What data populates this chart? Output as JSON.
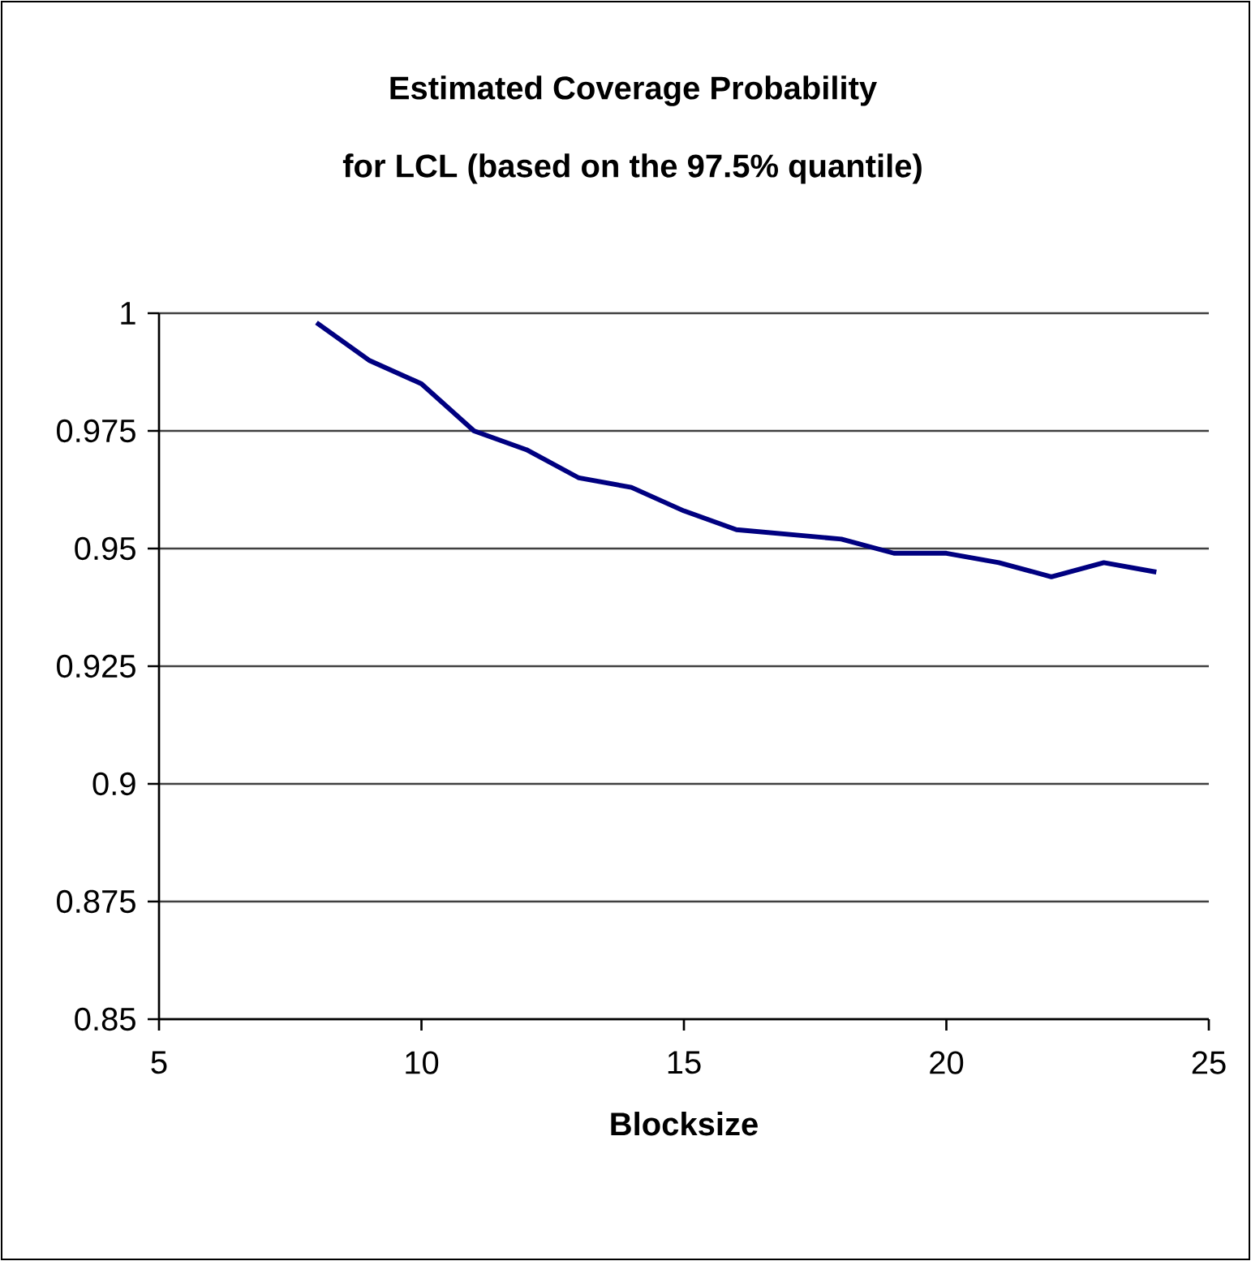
{
  "chart_data": {
    "type": "line",
    "title": "Estimated Coverage Probability",
    "subtitle": "for LCL (based on the 97.5% quantile)",
    "xlabel": "Blocksize",
    "x": [
      8,
      9,
      10,
      11,
      12,
      13,
      14,
      15,
      16,
      17,
      18,
      19,
      20,
      21,
      22,
      23,
      24
    ],
    "series": [
      {
        "color": "#000080",
        "values": [
          0.998,
          0.99,
          0.985,
          0.975,
          0.971,
          0.965,
          0.963,
          0.958,
          0.954,
          0.953,
          0.952,
          0.949,
          0.949,
          0.947,
          0.944,
          0.947,
          0.945
        ]
      }
    ],
    "xlim": [
      5,
      25
    ],
    "xticks": [
      5,
      10,
      15,
      20,
      25
    ],
    "ylim": [
      0.85,
      1
    ],
    "yticks": [
      0.85,
      0.875,
      0.9,
      0.925,
      0.95,
      0.975,
      1
    ],
    "grid": "y",
    "marker": "none",
    "line_style": "solid"
  }
}
